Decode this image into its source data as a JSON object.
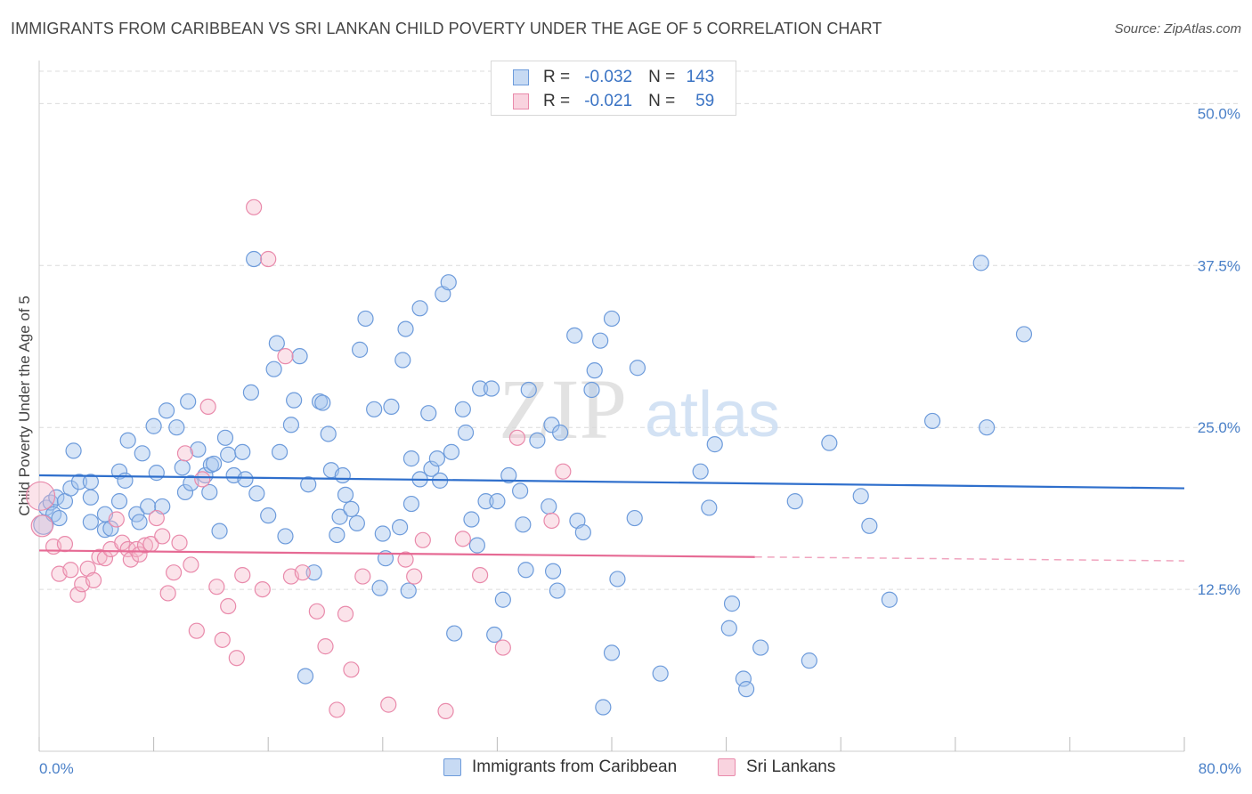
{
  "title": "IMMIGRANTS FROM CARIBBEAN VS SRI LANKAN CHILD POVERTY UNDER THE AGE OF 5 CORRELATION CHART",
  "source": "Source: ZipAtlas.com",
  "watermark": {
    "zip": "ZIP",
    "atlas": "atlas"
  },
  "legend_top": {
    "r_label": "R =",
    "n_label": "N =",
    "rows": [
      {
        "r": "-0.032",
        "n": "143",
        "color": "#a7c5ed"
      },
      {
        "r": "-0.021",
        "n": "59",
        "color": "#f4b8cb"
      }
    ]
  },
  "colors": {
    "blue": "#5b8fd6",
    "blue_fill": "#a7c5ed",
    "pink": "#e77aa0",
    "pink_fill": "#f4b8cb",
    "blue_line": "#2f6fcc",
    "pink_line": "#e66a94"
  },
  "chart_data": {
    "type": "scatter",
    "title": "IMMIGRANTS FROM CARIBBEAN VS SRI LANKAN CHILD POVERTY UNDER THE AGE OF 5 CORRELATION CHART",
    "xlabel": "",
    "ylabel": "Child Poverty Under the Age of 5",
    "xlim": [
      0,
      80
    ],
    "ylim": [
      0,
      52.5
    ],
    "x_tick_labels": [
      "0.0%",
      "80.0%"
    ],
    "y_ticks": [
      12.5,
      25.0,
      37.5,
      50.0
    ],
    "y_tick_labels": [
      "12.5%",
      "25.0%",
      "37.5%",
      "50.0%"
    ],
    "grid": true,
    "legend_position": "bottom",
    "series": [
      {
        "name": "Immigrants from Caribbean",
        "r": -0.032,
        "n": 143,
        "trend": {
          "x0": 0,
          "y0": 21.3,
          "x1": 80,
          "y1": 20.3
        },
        "points": [
          [
            0.3,
            17.5
          ],
          [
            0.5,
            18.8
          ],
          [
            0.8,
            19.2
          ],
          [
            1.0,
            18.3
          ],
          [
            1.2,
            19.6
          ],
          [
            1.4,
            18.0
          ],
          [
            1.8,
            19.3
          ],
          [
            2.2,
            20.3
          ],
          [
            2.4,
            23.2
          ],
          [
            2.8,
            20.8
          ],
          [
            3.6,
            20.8
          ],
          [
            3.6,
            19.6
          ],
          [
            3.6,
            17.7
          ],
          [
            4.6,
            17.1
          ],
          [
            4.6,
            18.3
          ],
          [
            5.0,
            17.2
          ],
          [
            5.6,
            19.3
          ],
          [
            5.6,
            21.6
          ],
          [
            6.0,
            20.9
          ],
          [
            6.2,
            24.0
          ],
          [
            6.8,
            18.3
          ],
          [
            7.0,
            17.7
          ],
          [
            7.2,
            23.0
          ],
          [
            7.6,
            18.9
          ],
          [
            8.0,
            25.1
          ],
          [
            8.2,
            21.5
          ],
          [
            8.6,
            18.9
          ],
          [
            8.9,
            26.3
          ],
          [
            9.6,
            25.0
          ],
          [
            10.0,
            21.9
          ],
          [
            10.2,
            20.0
          ],
          [
            10.4,
            27.0
          ],
          [
            10.6,
            20.7
          ],
          [
            11.1,
            23.3
          ],
          [
            11.6,
            21.3
          ],
          [
            11.9,
            20.0
          ],
          [
            12.0,
            22.1
          ],
          [
            12.2,
            22.2
          ],
          [
            12.6,
            17.0
          ],
          [
            13.0,
            24.2
          ],
          [
            13.2,
            22.9
          ],
          [
            13.6,
            21.3
          ],
          [
            14.2,
            23.1
          ],
          [
            14.4,
            21.0
          ],
          [
            14.8,
            27.7
          ],
          [
            15.2,
            19.9
          ],
          [
            15.0,
            38.0
          ],
          [
            16.0,
            18.2
          ],
          [
            16.4,
            29.5
          ],
          [
            16.6,
            31.5
          ],
          [
            16.8,
            23.1
          ],
          [
            17.2,
            16.6
          ],
          [
            17.6,
            25.2
          ],
          [
            17.8,
            27.1
          ],
          [
            18.2,
            30.5
          ],
          [
            18.6,
            5.8
          ],
          [
            18.8,
            20.6
          ],
          [
            19.2,
            13.8
          ],
          [
            19.6,
            27.0
          ],
          [
            19.8,
            26.9
          ],
          [
            20.2,
            24.5
          ],
          [
            20.4,
            21.7
          ],
          [
            20.8,
            16.7
          ],
          [
            21.0,
            18.1
          ],
          [
            21.2,
            21.3
          ],
          [
            21.4,
            19.8
          ],
          [
            21.8,
            18.7
          ],
          [
            22.4,
            31.0
          ],
          [
            22.8,
            33.4
          ],
          [
            23.4,
            26.4
          ],
          [
            23.8,
            12.6
          ],
          [
            24.0,
            16.8
          ],
          [
            24.2,
            14.9
          ],
          [
            24.6,
            26.6
          ],
          [
            25.2,
            17.3
          ],
          [
            25.4,
            30.2
          ],
          [
            25.6,
            32.6
          ],
          [
            26.0,
            22.6
          ],
          [
            26.0,
            19.1
          ],
          [
            26.6,
            34.2
          ],
          [
            26.6,
            21.0
          ],
          [
            27.2,
            26.1
          ],
          [
            27.4,
            21.8
          ],
          [
            27.8,
            22.6
          ],
          [
            28.0,
            20.9
          ],
          [
            28.2,
            35.3
          ],
          [
            28.6,
            36.2
          ],
          [
            28.8,
            23.1
          ],
          [
            29.0,
            9.1
          ],
          [
            29.6,
            26.4
          ],
          [
            29.8,
            24.6
          ],
          [
            30.2,
            17.9
          ],
          [
            30.8,
            28.0
          ],
          [
            31.2,
            19.3
          ],
          [
            31.6,
            28.0
          ],
          [
            31.8,
            9.0
          ],
          [
            32.0,
            19.3
          ],
          [
            32.4,
            11.7
          ],
          [
            32.8,
            21.3
          ],
          [
            33.6,
            20.1
          ],
          [
            33.8,
            17.5
          ],
          [
            34.2,
            27.9
          ],
          [
            34.8,
            24.0
          ],
          [
            35.6,
            18.9
          ],
          [
            35.8,
            25.2
          ],
          [
            35.9,
            13.9
          ],
          [
            36.4,
            24.6
          ],
          [
            37.4,
            32.1
          ],
          [
            37.6,
            17.8
          ],
          [
            38.0,
            16.9
          ],
          [
            38.6,
            27.9
          ],
          [
            38.8,
            29.4
          ],
          [
            39.2,
            31.7
          ],
          [
            39.4,
            3.4
          ],
          [
            40.0,
            7.6
          ],
          [
            40.0,
            33.4
          ],
          [
            40.4,
            13.3
          ],
          [
            41.6,
            18.0
          ],
          [
            41.8,
            29.6
          ],
          [
            43.4,
            6.0
          ],
          [
            46.2,
            21.6
          ],
          [
            46.8,
            18.8
          ],
          [
            47.2,
            23.7
          ],
          [
            48.2,
            9.5
          ],
          [
            48.4,
            11.4
          ],
          [
            49.2,
            5.6
          ],
          [
            49.4,
            4.8
          ],
          [
            50.4,
            8.0
          ],
          [
            52.8,
            19.3
          ],
          [
            53.8,
            7.0
          ],
          [
            55.2,
            23.8
          ],
          [
            57.4,
            19.7
          ],
          [
            58.0,
            17.4
          ],
          [
            59.4,
            11.7
          ],
          [
            62.4,
            25.5
          ],
          [
            65.8,
            37.7
          ],
          [
            66.2,
            25.0
          ],
          [
            68.8,
            32.2
          ],
          [
            25.8,
            12.4
          ],
          [
            22.2,
            17.6
          ],
          [
            30.6,
            15.9
          ],
          [
            34.0,
            14.0
          ],
          [
            36.2,
            12.4
          ]
        ]
      },
      {
        "name": "Sri Lankans",
        "r": -0.021,
        "n": 59,
        "trend": {
          "x0": 0,
          "y0": 15.5,
          "x1": 50,
          "y1": 15.0
        },
        "trend_extension": {
          "x0": 50,
          "y0": 15.0,
          "x1": 80,
          "y1": 14.7
        },
        "points": [
          [
            0.1,
            19.7
          ],
          [
            0.2,
            17.4
          ],
          [
            1.0,
            15.8
          ],
          [
            1.4,
            13.7
          ],
          [
            1.8,
            16.0
          ],
          [
            2.2,
            14.0
          ],
          [
            2.7,
            12.1
          ],
          [
            3.0,
            12.9
          ],
          [
            3.4,
            14.1
          ],
          [
            3.8,
            13.2
          ],
          [
            4.2,
            15.0
          ],
          [
            4.6,
            14.9
          ],
          [
            5.0,
            15.6
          ],
          [
            5.4,
            17.9
          ],
          [
            5.8,
            16.1
          ],
          [
            6.2,
            15.6
          ],
          [
            6.4,
            14.8
          ],
          [
            6.8,
            15.6
          ],
          [
            7.0,
            15.2
          ],
          [
            7.4,
            15.9
          ],
          [
            7.8,
            16.0
          ],
          [
            8.2,
            18.0
          ],
          [
            8.6,
            16.6
          ],
          [
            9.0,
            12.2
          ],
          [
            9.4,
            13.8
          ],
          [
            9.8,
            16.1
          ],
          [
            10.2,
            23.0
          ],
          [
            10.6,
            14.4
          ],
          [
            11.0,
            9.3
          ],
          [
            11.4,
            21.0
          ],
          [
            11.8,
            26.6
          ],
          [
            12.4,
            12.7
          ],
          [
            12.8,
            8.6
          ],
          [
            13.2,
            11.2
          ],
          [
            13.8,
            7.2
          ],
          [
            14.2,
            13.6
          ],
          [
            15.0,
            42.0
          ],
          [
            15.6,
            12.5
          ],
          [
            16.0,
            38.0
          ],
          [
            17.2,
            30.5
          ],
          [
            17.6,
            13.5
          ],
          [
            18.4,
            13.8
          ],
          [
            19.4,
            10.8
          ],
          [
            20.0,
            8.1
          ],
          [
            20.8,
            3.2
          ],
          [
            21.4,
            10.6
          ],
          [
            21.8,
            6.3
          ],
          [
            22.6,
            13.5
          ],
          [
            24.4,
            3.6
          ],
          [
            25.6,
            14.8
          ],
          [
            26.2,
            13.5
          ],
          [
            26.8,
            16.3
          ],
          [
            28.4,
            3.1
          ],
          [
            29.6,
            16.4
          ],
          [
            30.8,
            13.6
          ],
          [
            32.4,
            8.0
          ],
          [
            33.4,
            24.2
          ],
          [
            35.8,
            17.8
          ],
          [
            36.6,
            21.6
          ]
        ]
      }
    ]
  },
  "bottom_legend": [
    {
      "label": "Immigrants from Caribbean",
      "color": "#a7c5ed"
    },
    {
      "label": "Sri Lankans",
      "color": "#f4b8cb"
    }
  ]
}
